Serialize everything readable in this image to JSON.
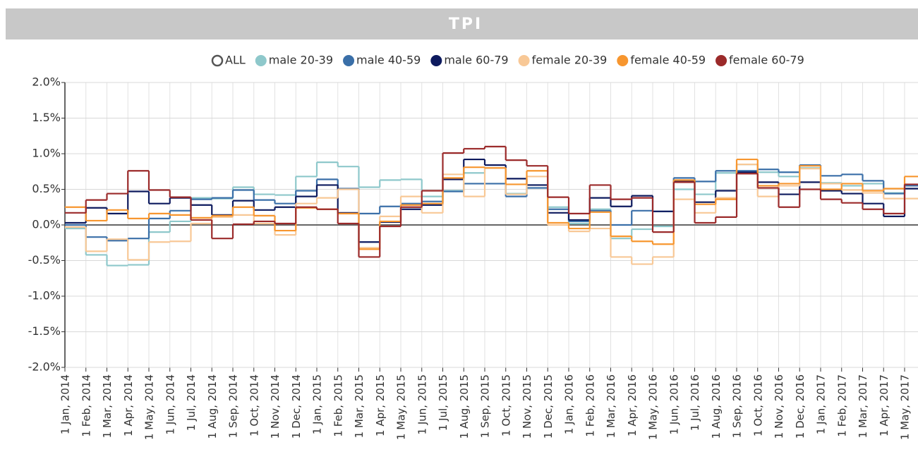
{
  "chart_data": {
    "type": "step-line",
    "title": "TPI",
    "legend_all_label": "ALL",
    "categories": [
      "1 Jan, 2014",
      "1 Feb, 2014",
      "1 Mar, 2014",
      "1 Apr, 2014",
      "1 May, 2014",
      "1 Jun, 2014",
      "1 Jul, 2014",
      "1 Aug, 2014",
      "1 Sep, 2014",
      "1 Oct, 2014",
      "1 Nov, 2014",
      "1 Dec, 2014",
      "1 Jan, 2015",
      "1 Feb, 2015",
      "1 Mar, 2015",
      "1 Apr, 2015",
      "1 May, 2015",
      "1 Jun, 2015",
      "1 Jul, 2015",
      "1 Aug, 2015",
      "1 Sep, 2015",
      "1 Oct, 2015",
      "1 Nov, 2015",
      "1 Dec, 2015",
      "1 Jan, 2016",
      "1 Feb, 2016",
      "1 Mar, 2016",
      "1 Apr, 2016",
      "1 May, 2016",
      "1 Jun, 2016",
      "1 Jul, 2016",
      "1 Aug, 2016",
      "1 Sep, 2016",
      "1 Oct, 2016",
      "1 Nov, 2016",
      "1 Dec, 2016",
      "1 Jan, 2017",
      "1 Feb, 2017",
      "1 Mar, 2017",
      "1 Apr, 2017",
      "1 May, 2017"
    ],
    "series": [
      {
        "name": "male 20-39",
        "color": "#8ec8cb",
        "values": [
          -0.05,
          -0.42,
          -0.57,
          -0.56,
          -0.1,
          0.05,
          0.38,
          0.37,
          0.53,
          0.43,
          0.42,
          0.68,
          0.88,
          0.82,
          0.53,
          0.63,
          0.64,
          0.4,
          0.48,
          0.73,
          0.8,
          0.44,
          0.56,
          0.25,
          0.02,
          0.22,
          -0.19,
          -0.06,
          -0.02,
          0.5,
          0.43,
          0.73,
          0.85,
          0.74,
          0.68,
          0.8,
          0.59,
          0.55,
          0.58,
          0.45,
          0.55
        ]
      },
      {
        "name": "male 40-59",
        "color": "#3a6fa8",
        "values": [
          0.0,
          -0.17,
          -0.22,
          -0.19,
          0.09,
          0.2,
          0.36,
          0.38,
          0.49,
          0.35,
          0.3,
          0.48,
          0.64,
          0.51,
          0.16,
          0.26,
          0.3,
          0.33,
          0.47,
          0.58,
          0.58,
          0.4,
          0.52,
          0.22,
          0.05,
          0.2,
          0.0,
          0.2,
          0.19,
          0.66,
          0.61,
          0.76,
          0.76,
          0.78,
          0.74,
          0.84,
          0.69,
          0.71,
          0.62,
          0.44,
          0.55
        ]
      },
      {
        "name": "male 60-79",
        "color": "#0d1a5e",
        "values": [
          0.03,
          0.24,
          0.16,
          0.47,
          0.3,
          0.38,
          0.28,
          0.14,
          0.34,
          0.21,
          0.25,
          0.4,
          0.56,
          0.17,
          -0.24,
          0.04,
          0.22,
          0.28,
          0.64,
          0.92,
          0.84,
          0.65,
          0.56,
          0.17,
          0.07,
          0.38,
          0.26,
          0.41,
          0.19,
          0.62,
          0.32,
          0.48,
          0.74,
          0.6,
          0.43,
          0.6,
          0.48,
          0.44,
          0.3,
          0.12,
          0.51
        ]
      },
      {
        "name": "female 20-39",
        "color": "#f8c896",
        "values": [
          -0.03,
          -0.37,
          -0.2,
          -0.49,
          -0.24,
          -0.23,
          0.02,
          0.11,
          0.14,
          0.02,
          -0.14,
          0.3,
          0.38,
          0.5,
          -0.32,
          0.12,
          0.4,
          0.17,
          0.71,
          0.4,
          0.8,
          0.43,
          0.68,
          0.0,
          -0.09,
          -0.05,
          -0.45,
          -0.55,
          -0.45,
          0.36,
          0.17,
          0.38,
          0.85,
          0.4,
          0.55,
          0.79,
          0.58,
          0.49,
          0.45,
          0.37,
          0.37
        ]
      },
      {
        "name": "female 40-59",
        "color": "#f7962f",
        "values": [
          0.25,
          0.06,
          0.21,
          0.09,
          0.16,
          0.14,
          0.1,
          0.13,
          0.25,
          0.13,
          -0.08,
          0.24,
          0.22,
          0.16,
          -0.34,
          0.05,
          0.28,
          0.3,
          0.66,
          0.81,
          0.8,
          0.57,
          0.76,
          0.03,
          -0.05,
          0.18,
          -0.16,
          -0.23,
          -0.27,
          0.63,
          0.29,
          0.36,
          0.92,
          0.55,
          0.58,
          0.83,
          0.5,
          0.58,
          0.48,
          0.51,
          0.68
        ]
      },
      {
        "name": "female 60-79",
        "color": "#9b2a2a",
        "values": [
          0.17,
          0.35,
          0.44,
          0.76,
          0.49,
          0.39,
          0.07,
          -0.19,
          0.01,
          0.05,
          0.02,
          0.25,
          0.22,
          0.02,
          -0.45,
          -0.02,
          0.25,
          0.48,
          1.01,
          1.07,
          1.1,
          0.91,
          0.83,
          0.39,
          0.16,
          0.56,
          0.36,
          0.38,
          -0.1,
          0.6,
          0.03,
          0.11,
          0.72,
          0.52,
          0.25,
          0.5,
          0.36,
          0.31,
          0.22,
          0.16,
          0.57
        ]
      }
    ],
    "ylim": [
      -2.0,
      2.0
    ],
    "yticks": [
      {
        "value": -2.0,
        "label": "-2.0%"
      },
      {
        "value": -1.5,
        "label": "-1.5%"
      },
      {
        "value": -1.0,
        "label": "-1.0%"
      },
      {
        "value": -0.5,
        "label": "-0.5%"
      },
      {
        "value": 0,
        "label": "0.0%"
      },
      {
        "value": 0.5,
        "label": "0.5%"
      },
      {
        "value": 1.0,
        "label": "1.0%"
      },
      {
        "value": 1.5,
        "label": "1.5%"
      },
      {
        "value": 2.0,
        "label": "2.0%"
      }
    ],
    "grid": true
  }
}
